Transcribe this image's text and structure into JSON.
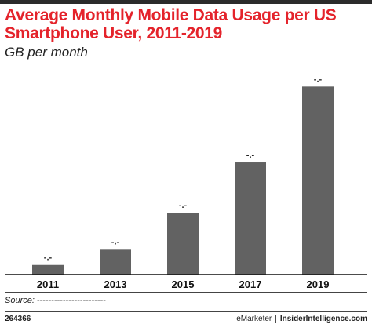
{
  "title": "Average Monthly Mobile Data Usage per US Smartphone User, 2011-2019",
  "subtitle": "GB per month",
  "chart_data": {
    "type": "bar",
    "categories": [
      "2011",
      "2013",
      "2015",
      "2017",
      "2019"
    ],
    "values": [
      0.9,
      2.4,
      5.8,
      10.5,
      17.6
    ],
    "data_labels": [
      "-.-",
      "-.-",
      "-.-",
      "-.-",
      "-.-"
    ],
    "title": "Average Monthly Mobile Data Usage per US Smartphone User, 2011-2019",
    "subtitle": "GB per month",
    "ylim": [
      0,
      18.8
    ],
    "grid": false,
    "bar_color": "#626262"
  },
  "source": {
    "label": "Source:",
    "value": "------------------------"
  },
  "footer": {
    "chart_id": "264366",
    "brand": "eMarketer",
    "separator": "|",
    "site": "InsiderIntelligence.com"
  },
  "colors": {
    "title": "#e4232b",
    "bars": "#626262",
    "top_bar": "#2b2b2b"
  }
}
